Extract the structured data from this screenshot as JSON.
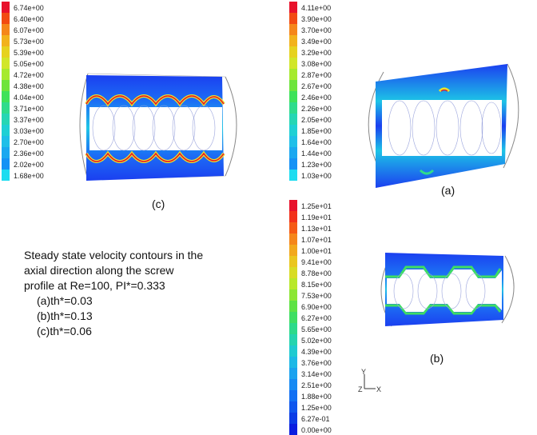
{
  "colorbars": {
    "c": {
      "labels": [
        "6.74e+00",
        "6.40e+00",
        "6.07e+00",
        "5.73e+00",
        "5.39e+00",
        "5.05e+00",
        "4.72e+00",
        "4.38e+00",
        "4.04e+00",
        "3.71e+00",
        "3.37e+00",
        "3.03e+00",
        "2.70e+00",
        "2.36e+00",
        "2.02e+00",
        "1.68e+00"
      ],
      "colors": [
        "#e8112b",
        "#f24a12",
        "#f5861a",
        "#f2b21c",
        "#e6d21f",
        "#d1e62a",
        "#a6ea2e",
        "#6ee43c",
        "#3ee25a",
        "#2fdc8c",
        "#26d6b4",
        "#1fd0d4",
        "#1fbfe8",
        "#1aa8f0",
        "#1592f5",
        "#1ddcf0"
      ]
    },
    "a": {
      "labels": [
        "4.11e+00",
        "3.90e+00",
        "3.70e+00",
        "3.49e+00",
        "3.29e+00",
        "3.08e+00",
        "2.87e+00",
        "2.67e+00",
        "2.46e+00",
        "2.26e+00",
        "2.05e+00",
        "1.85e+00",
        "1.64e+00",
        "1.44e+00",
        "1.23e+00",
        "1.03e+00"
      ],
      "colors": [
        "#e8112b",
        "#f24a12",
        "#f5861a",
        "#f2b21c",
        "#e6d21f",
        "#d1e62a",
        "#a6ea2e",
        "#6ee43c",
        "#3ee25a",
        "#2fdc8c",
        "#26d6b4",
        "#1fd0d4",
        "#1fbfe8",
        "#1aa8f0",
        "#1592f5",
        "#1ddcf0"
      ]
    },
    "b": {
      "labels": [
        "1.25e+01",
        "1.19e+01",
        "1.13e+01",
        "1.07e+01",
        "1.00e+01",
        "9.41e+00",
        "8.78e+00",
        "8.15e+00",
        "7.53e+00",
        "6.90e+00",
        "6.27e+00",
        "5.65e+00",
        "5.02e+00",
        "4.39e+00",
        "3.76e+00",
        "3.14e+00",
        "2.51e+00",
        "1.88e+00",
        "1.25e+00",
        "6.27e-01",
        "0.00e+00"
      ],
      "colors": [
        "#e8112b",
        "#f2311a",
        "#f55a14",
        "#f5861a",
        "#f2a81c",
        "#eac61e",
        "#d8dc24",
        "#b8e82a",
        "#8ce634",
        "#5ee244",
        "#3ede62",
        "#2cda8a",
        "#24d4ae",
        "#1ecad0",
        "#1cb8e6",
        "#1aa2ef",
        "#168af3",
        "#1270f3",
        "#0e56ee",
        "#0a3ce6",
        "#0a1ee0"
      ]
    }
  },
  "panels": {
    "c_label": "(c)",
    "a_label": "(a)",
    "b_label": "(b)"
  },
  "caption": {
    "line1": "Steady state velocity contours in the",
    "line2": "axial direction along the screw",
    "line3": "profile at Re=100, PI*=0.333",
    "items": [
      "(a)th*=0.03",
      "(b)th*=0.13",
      "(c)th*=0.06"
    ]
  },
  "axes": {
    "y": "Y",
    "z": "Z",
    "x": "X"
  }
}
